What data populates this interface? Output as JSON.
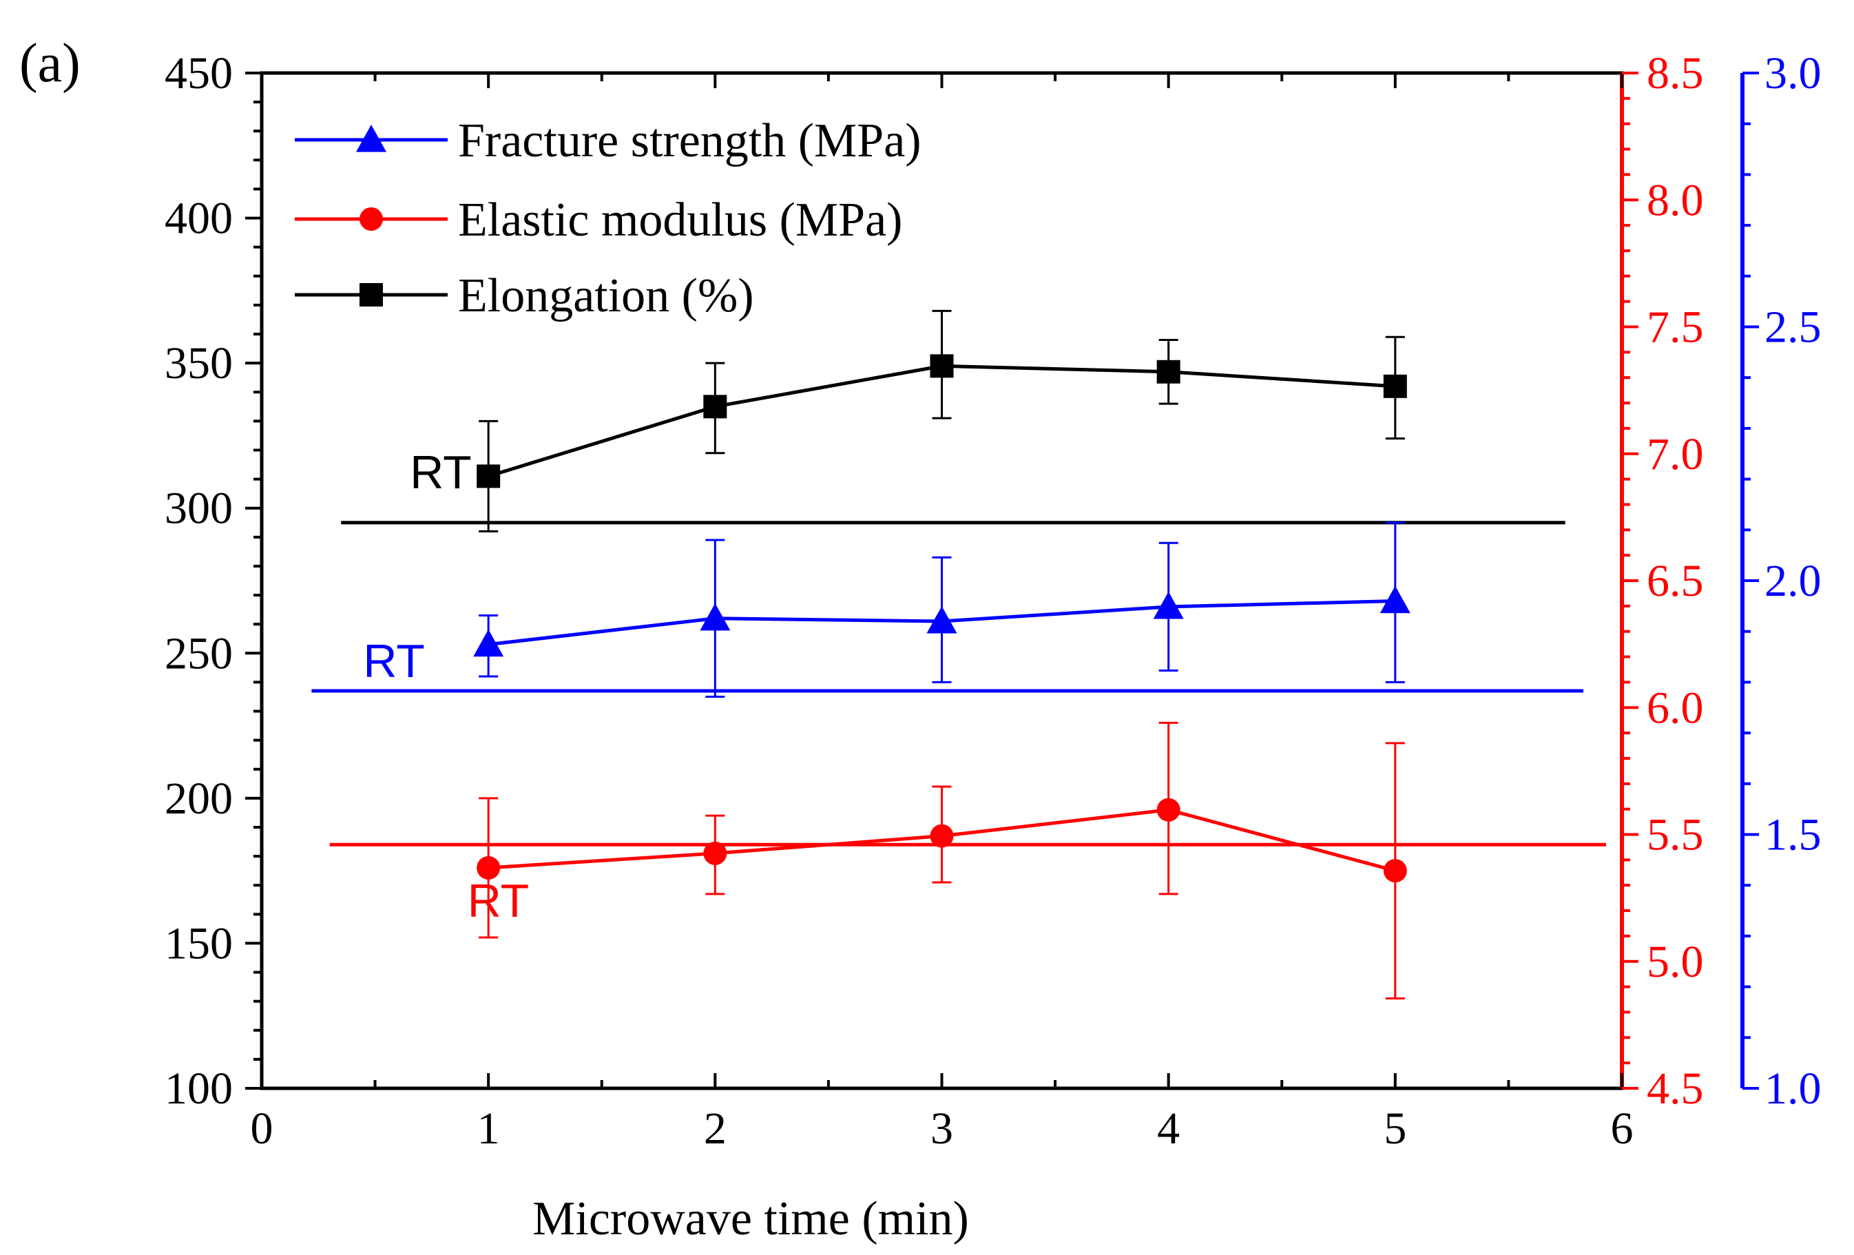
{
  "panel_label": "(a)",
  "chart_data": {
    "type": "line",
    "xlabel": "Microwave time (min)",
    "x_ticks": [
      "0",
      "1",
      "2",
      "3",
      "4",
      "5",
      "6"
    ],
    "xlim": [
      0,
      6
    ],
    "axes": {
      "left": {
        "ylim": [
          100,
          450
        ],
        "ticks": [
          "100",
          "150",
          "200",
          "250",
          "300",
          "350",
          "400",
          "450"
        ],
        "color": "#000000"
      },
      "right_red": {
        "ylim": [
          4.5,
          8.5
        ],
        "ticks": [
          "4.5",
          "5.0",
          "5.5",
          "6.0",
          "6.5",
          "7.0",
          "7.5",
          "8.0",
          "8.5"
        ],
        "color": "#ff0000"
      },
      "right_blue": {
        "ylim": [
          1.0,
          3.0
        ],
        "ticks": [
          "1.0",
          "1.5",
          "2.0",
          "2.5",
          "3.0"
        ],
        "color": "#0000ff"
      }
    },
    "legend": {
      "placement": "top-left",
      "entries": [
        {
          "label": "Fracture strength (MPa)",
          "color": "#0000ff",
          "marker": "triangle"
        },
        {
          "label": "Elastic modulus (MPa)",
          "color": "#ff0000",
          "marker": "circle"
        },
        {
          "label": "Elongation (%)",
          "color": "#000000",
          "marker": "square"
        }
      ]
    },
    "series": [
      {
        "label": "Elongation (%)",
        "color": "#000000",
        "marker": "square",
        "x": [
          1,
          2,
          3,
          4,
          5
        ],
        "y": [
          311,
          335,
          349,
          347,
          342
        ],
        "y_err_low": [
          292,
          319,
          331,
          336,
          324
        ],
        "y_err_high": [
          330,
          350,
          368,
          358,
          359
        ]
      },
      {
        "label": "Fracture strength (MPa)",
        "color": "#0000ff",
        "marker": "triangle",
        "x": [
          1,
          2,
          3,
          4,
          5
        ],
        "y": [
          253,
          262,
          261,
          266,
          268
        ],
        "y_err_low": [
          242,
          235,
          240,
          244,
          240
        ],
        "y_err_high": [
          263,
          289,
          283,
          288,
          295
        ]
      },
      {
        "label": "Elastic modulus (MPa)",
        "color": "#ff0000",
        "marker": "circle",
        "x": [
          1,
          2,
          3,
          4,
          5
        ],
        "y": [
          176,
          181,
          187,
          196,
          175
        ],
        "y_err_low": [
          152,
          167,
          171,
          167,
          131
        ],
        "y_err_high": [
          200,
          194,
          204,
          226,
          219
        ]
      }
    ],
    "reference_lines": [
      {
        "label": "RT",
        "color": "#000000",
        "y": 295,
        "x_range": [
          0.35,
          5.75
        ]
      },
      {
        "label": "RT",
        "color": "#0000ff",
        "y": 237,
        "x_range": [
          0.22,
          5.83
        ]
      },
      {
        "label": "RT",
        "color": "#ff0000",
        "y": 184,
        "x_range": [
          0.3,
          5.93
        ]
      }
    ]
  }
}
